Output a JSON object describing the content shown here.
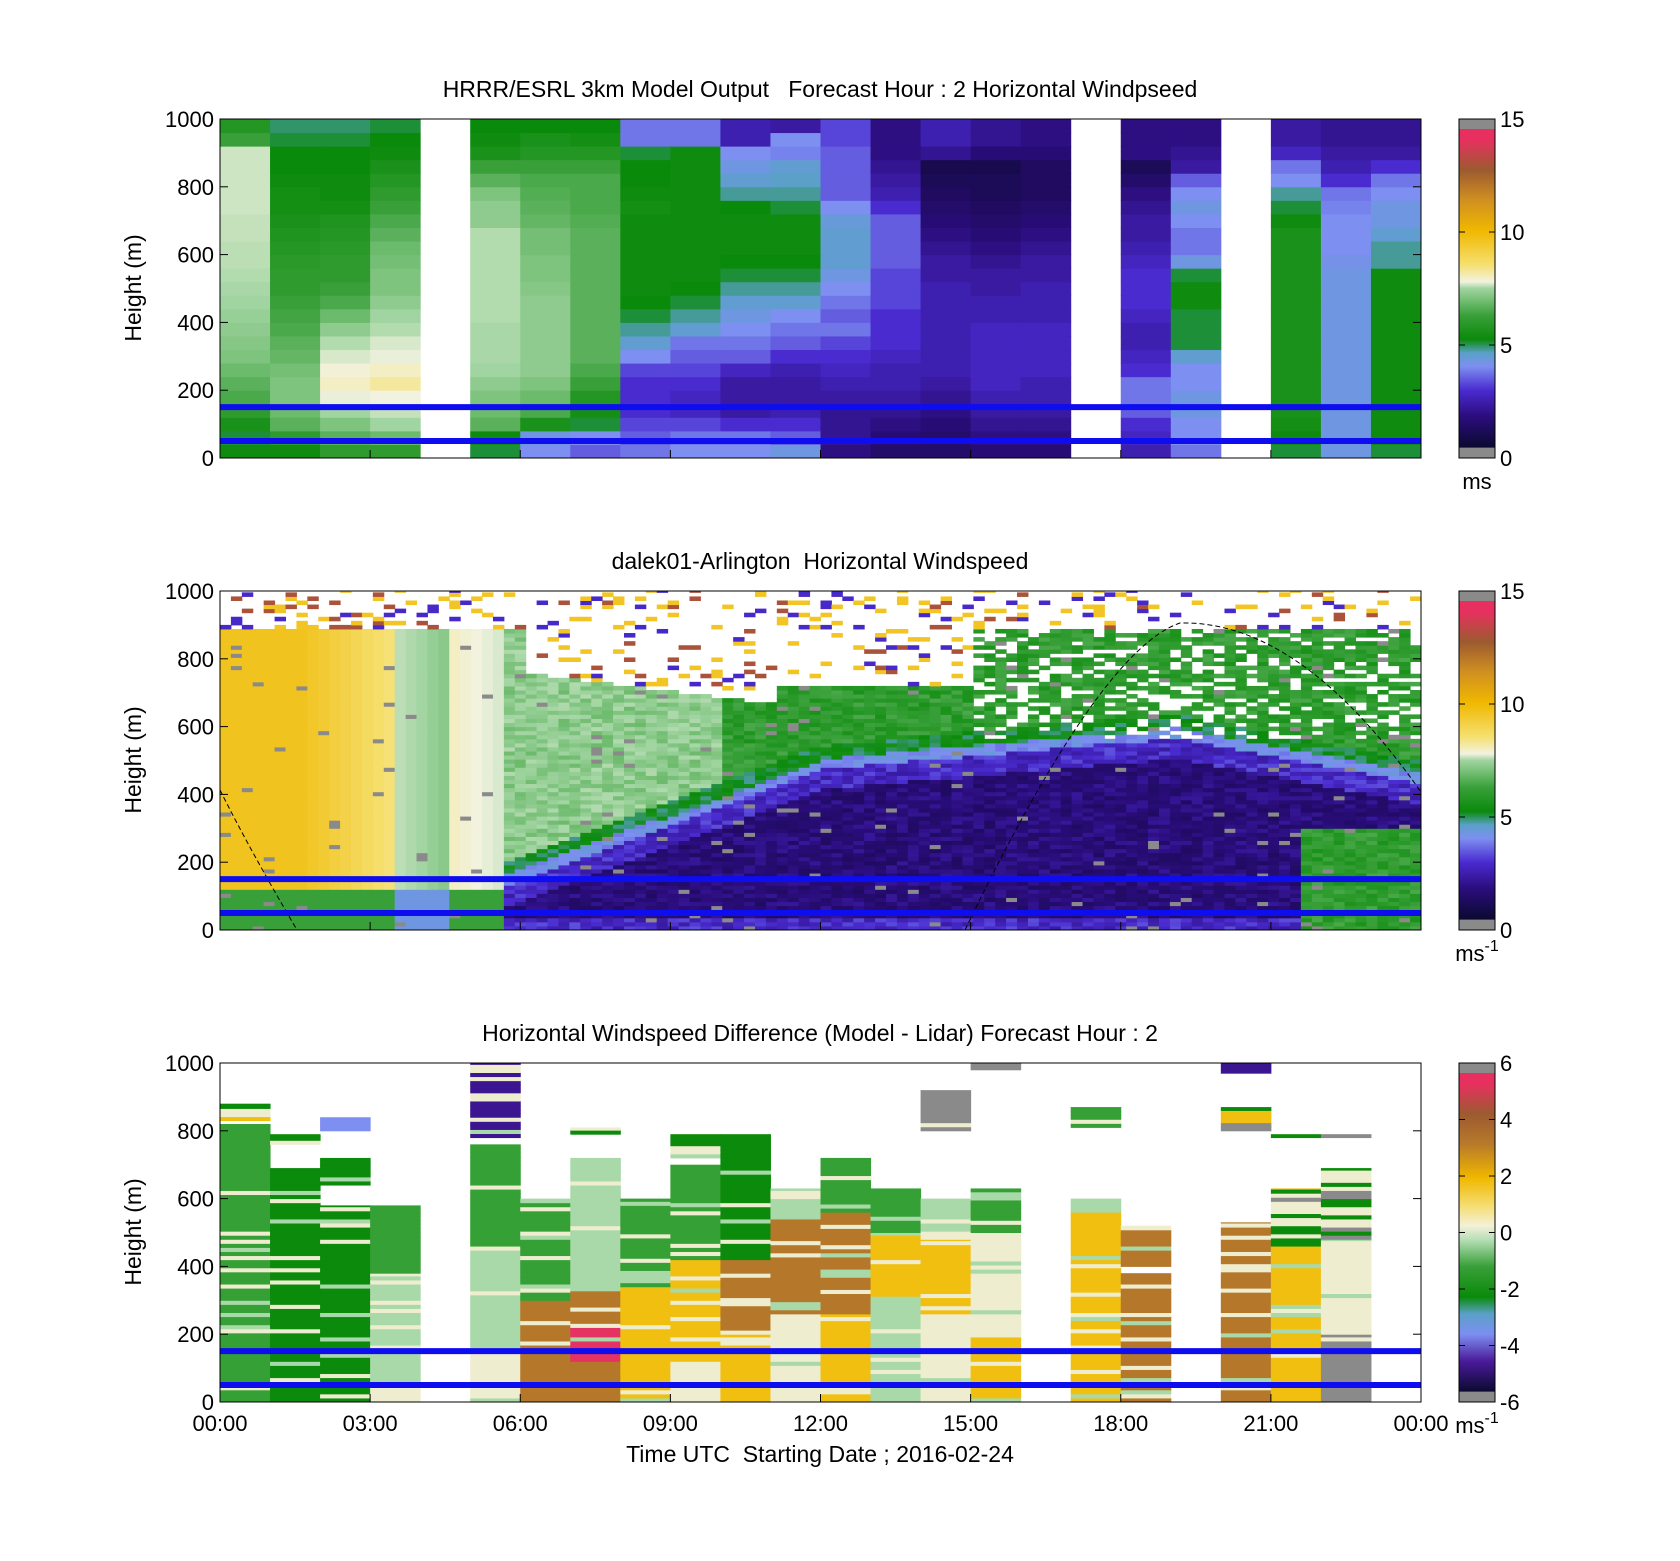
{
  "chart_data": [
    {
      "type": "heatmap",
      "title": "HRRR/ESRL 3km Model Output   Forecast Hour : 2 Horizontal Windpseed",
      "ylabel": "Height (m)",
      "xlabel": "",
      "ylim": [
        0,
        1000
      ],
      "yticks": [
        "0",
        "200",
        "400",
        "600",
        "800",
        "1000"
      ],
      "colorbar": {
        "min": 0,
        "max": 15,
        "ticks": [
          "0",
          "5",
          "10",
          "15"
        ],
        "unit": "ms",
        "unit_sup": "",
        "palette": "speed"
      },
      "x_hours_utc": [
        0,
        1,
        2,
        3,
        4,
        5,
        6,
        7,
        8,
        9,
        10,
        11,
        12,
        13,
        14,
        15,
        16,
        17,
        18,
        19,
        20,
        21,
        22,
        23
      ],
      "y_heights_m": [
        20,
        60,
        100,
        140,
        180,
        220,
        260,
        300,
        340,
        380,
        420,
        460,
        500,
        540,
        580,
        620,
        660,
        700,
        740,
        780,
        820,
        860,
        900,
        940,
        980
      ],
      "horizontal_lines_m": [
        50,
        150
      ],
      "note_missing": "null values are not shown"
    },
    {
      "type": "heatmap",
      "title": "dalek01-Arlington  Horizontal Windspeed",
      "ylabel": "Height (m)",
      "xlabel": "",
      "ylim": [
        0,
        1000
      ],
      "yticks": [
        "0",
        "200",
        "400",
        "600",
        "800",
        "1000"
      ],
      "colorbar": {
        "min": 0,
        "max": 15,
        "ticks": [
          "0",
          "5",
          "10",
          "15"
        ],
        "unit": "ms",
        "unit_sup": "-1",
        "palette": "speed"
      },
      "horizontal_lines_m": [
        50,
        150
      ]
    },
    {
      "type": "heatmap",
      "title": "Horizontal Windspeed Difference (Model - Lidar) Forecast Hour : 2",
      "ylabel": "Height (m)",
      "xlabel": "Time UTC  Starting Date ; 2016-02-24",
      "ylim": [
        0,
        1000
      ],
      "yticks": [
        "0",
        "200",
        "400",
        "600",
        "800",
        "1000"
      ],
      "xticks": [
        "00:00",
        "03:00",
        "06:00",
        "09:00",
        "12:00",
        "15:00",
        "18:00",
        "21:00",
        "00:00"
      ],
      "colorbar": {
        "min": -6,
        "max": 6,
        "ticks": [
          "-6",
          "-4",
          "-2",
          "0",
          "2",
          "4",
          "6"
        ],
        "unit": "ms",
        "unit_sup": "-1",
        "palette": "diff"
      },
      "horizontal_lines_m": [
        50,
        150
      ]
    }
  ],
  "model_columns": [
    [
      4.4,
      4.2,
      4.6,
      5.0,
      5.4,
      5.6,
      5.8,
      6.0,
      6.1,
      6.2,
      6.3,
      6.4,
      6.5,
      6.6,
      6.7,
      6.7,
      6.8,
      6.8,
      6.9,
      6.9,
      6.9,
      6.9,
      6.9,
      5.2,
      4.8
    ],
    [
      4.4,
      5.0,
      5.6,
      5.8,
      6.0,
      6.0,
      5.9,
      5.7,
      5.6,
      5.4,
      5.3,
      5.2,
      5.0,
      5.0,
      4.9,
      4.8,
      4.7,
      4.6,
      4.5,
      4.5,
      4.4,
      4.3,
      4.3,
      4.2,
      4.1
    ],
    [
      5.0,
      5.6,
      6.0,
      6.4,
      7.2,
      7.6,
      7.4,
      7.0,
      6.6,
      6.2,
      5.8,
      5.4,
      5.2,
      5.0,
      5.0,
      4.9,
      4.8,
      4.7,
      4.5,
      4.4,
      4.4,
      4.3,
      4.3,
      4.2,
      4.1
    ],
    [
      5.0,
      5.8,
      6.4,
      6.8,
      7.3,
      8.0,
      7.6,
      7.2,
      7.0,
      6.6,
      6.4,
      6.2,
      6.0,
      6.0,
      5.9,
      5.8,
      5.6,
      5.4,
      5.2,
      5.0,
      4.8,
      4.6,
      4.4,
      4.3,
      4.2
    ],
    [
      null,
      null,
      null,
      null,
      null,
      null,
      null,
      null,
      null,
      null,
      null,
      null,
      null,
      null,
      null,
      null,
      null,
      null,
      null,
      null,
      null,
      null,
      null,
      null,
      null
    ],
    [
      4.2,
      4.4,
      5.6,
      5.8,
      6.0,
      6.2,
      6.4,
      6.5,
      6.5,
      6.5,
      6.6,
      6.6,
      6.6,
      6.6,
      6.6,
      6.6,
      6.6,
      6.2,
      6.2,
      6.0,
      5.6,
      5.2,
      4.6,
      4.4,
      4.3
    ],
    [
      3.4,
      3.6,
      4.6,
      5.4,
      5.8,
      6.0,
      6.2,
      6.2,
      6.2,
      6.2,
      6.2,
      6.2,
      6.1,
      6.0,
      6.0,
      5.9,
      5.9,
      5.7,
      5.6,
      5.5,
      5.4,
      5.2,
      4.8,
      4.6,
      4.3
    ],
    [
      3.0,
      3.4,
      4.2,
      4.5,
      4.8,
      5.2,
      5.4,
      5.6,
      5.6,
      5.6,
      5.6,
      5.6,
      5.6,
      5.6,
      5.6,
      5.6,
      5.6,
      5.5,
      5.4,
      5.4,
      5.4,
      5.2,
      4.8,
      4.5,
      4.3
    ],
    [
      3.2,
      3.0,
      2.8,
      2.6,
      2.6,
      2.6,
      2.8,
      3.4,
      3.8,
      4.0,
      4.2,
      4.3,
      4.4,
      4.4,
      4.4,
      4.4,
      4.4,
      4.4,
      4.5,
      4.4,
      4.3,
      4.3,
      4.2,
      3.2,
      3.2
    ],
    [
      3.4,
      3.2,
      2.8,
      2.4,
      2.4,
      2.6,
      2.8,
      3.0,
      3.2,
      3.8,
      4.0,
      4.2,
      4.3,
      4.4,
      4.4,
      4.4,
      4.4,
      4.4,
      4.4,
      4.4,
      4.4,
      4.4,
      4.4,
      3.2,
      3.2
    ],
    [
      3.4,
      3.2,
      2.6,
      2.0,
      2.0,
      2.0,
      2.4,
      3.0,
      3.2,
      3.4,
      3.6,
      3.8,
      4.0,
      4.2,
      4.3,
      4.4,
      4.4,
      4.4,
      4.3,
      4.0,
      3.8,
      3.6,
      3.4,
      2.2,
      2.2
    ],
    [
      3.6,
      3.0,
      2.6,
      2.2,
      2.0,
      2.0,
      2.2,
      2.6,
      3.0,
      3.2,
      3.4,
      3.8,
      4.0,
      4.2,
      4.3,
      4.4,
      4.4,
      4.4,
      4.2,
      4.0,
      3.9,
      3.8,
      3.3,
      3.4,
      2.0
    ],
    [
      1.6,
      1.8,
      1.8,
      1.8,
      2.0,
      2.2,
      2.4,
      2.6,
      2.8,
      3.2,
      3.0,
      3.2,
      3.4,
      3.6,
      3.8,
      3.8,
      3.8,
      3.7,
      3.4,
      3.0,
      3.0,
      3.0,
      3.0,
      2.8,
      2.8
    ],
    [
      1.2,
      1.4,
      1.6,
      1.8,
      2.0,
      2.2,
      2.2,
      2.4,
      2.6,
      2.6,
      2.6,
      2.8,
      2.8,
      2.8,
      3.0,
      3.0,
      3.0,
      3.0,
      2.6,
      2.2,
      2.0,
      1.8,
      1.6,
      1.6,
      1.6
    ],
    [
      1.2,
      1.2,
      1.4,
      1.6,
      1.8,
      2.0,
      2.2,
      2.2,
      2.2,
      2.2,
      2.2,
      2.2,
      2.2,
      2.0,
      2.0,
      1.8,
      1.6,
      1.4,
      1.2,
      1.0,
      0.8,
      0.6,
      1.8,
      2.2,
      2.2
    ],
    [
      1.4,
      1.6,
      1.8,
      2.0,
      2.2,
      2.4,
      2.4,
      2.4,
      2.4,
      2.4,
      2.2,
      2.2,
      2.0,
      2.0,
      1.8,
      1.6,
      1.4,
      1.2,
      1.0,
      0.8,
      0.8,
      0.6,
      1.4,
      1.8,
      1.8
    ],
    [
      1.4,
      1.6,
      1.8,
      2.0,
      2.2,
      2.2,
      2.4,
      2.4,
      2.4,
      2.4,
      2.2,
      2.2,
      2.2,
      2.0,
      2.0,
      1.8,
      1.6,
      1.4,
      1.2,
      1.0,
      1.0,
      1.0,
      1.4,
      1.6,
      1.6
    ],
    [
      null,
      null,
      null,
      null,
      null,
      null,
      null,
      null,
      null,
      null,
      null,
      null,
      null,
      null,
      null,
      null,
      null,
      null,
      null,
      null,
      null,
      null,
      null,
      null,
      null
    ],
    [
      2.2,
      2.4,
      2.6,
      3.0,
      3.2,
      3.2,
      2.6,
      2.4,
      2.2,
      2.2,
      2.4,
      2.6,
      2.6,
      2.6,
      2.4,
      2.2,
      2.0,
      2.0,
      1.8,
      1.6,
      1.2,
      0.8,
      1.6,
      1.6,
      1.6
    ],
    [
      3.2,
      3.4,
      3.4,
      3.6,
      3.6,
      3.4,
      3.4,
      3.8,
      4.2,
      4.2,
      4.2,
      4.4,
      4.4,
      4.2,
      3.6,
      3.2,
      3.2,
      3.4,
      3.6,
      3.4,
      3.0,
      2.0,
      1.8,
      1.6,
      1.6
    ],
    [
      null,
      null,
      null,
      null,
      null,
      null,
      null,
      null,
      null,
      null,
      null,
      null,
      null,
      null,
      null,
      null,
      null,
      null,
      null,
      null,
      null,
      null,
      null,
      null,
      null
    ],
    [
      4.2,
      4.4,
      4.5,
      4.6,
      4.6,
      4.6,
      4.6,
      4.6,
      4.6,
      4.6,
      4.6,
      4.6,
      4.6,
      4.6,
      4.6,
      4.6,
      4.6,
      4.4,
      4.2,
      4.0,
      3.4,
      3.2,
      2.4,
      2.0,
      2.0
    ],
    [
      3.6,
      3.6,
      3.6,
      3.6,
      3.6,
      3.6,
      3.6,
      3.6,
      3.6,
      3.6,
      3.6,
      3.6,
      3.6,
      3.6,
      3.5,
      3.4,
      3.4,
      3.4,
      3.3,
      3.2,
      2.6,
      2.2,
      2.0,
      1.8,
      1.8
    ],
    [
      4.2,
      4.4,
      4.4,
      4.4,
      4.4,
      4.4,
      4.4,
      4.4,
      4.4,
      4.4,
      4.4,
      4.4,
      4.4,
      4.4,
      4.0,
      4.0,
      3.8,
      3.6,
      3.6,
      3.4,
      3.2,
      2.6,
      2.0,
      1.8,
      1.8
    ]
  ],
  "diff_columns": [
    {
      "top": 880,
      "ranges": [
        [
          0,
          820,
          "mg"
        ],
        [
          830,
          880,
          "tri"
        ]
      ]
    },
    {
      "top": 790,
      "ranges": [
        [
          0,
          690,
          "dg"
        ],
        [
          760,
          790,
          "dg"
        ]
      ]
    },
    {
      "top": 840,
      "ranges": [
        [
          0,
          580,
          "dg"
        ],
        [
          640,
          720,
          "dg"
        ],
        [
          800,
          840,
          "blue"
        ]
      ]
    },
    {
      "top": 580,
      "ranges": [
        [
          0,
          60,
          "cream"
        ],
        [
          60,
          380,
          "lg"
        ],
        [
          380,
          580,
          "mg"
        ]
      ]
    },
    {
      "top": 0,
      "ranges": []
    },
    {
      "top": 1000,
      "ranges": [
        [
          0,
          160,
          "cream"
        ],
        [
          160,
          460,
          "lg"
        ],
        [
          460,
          760,
          "mg"
        ],
        [
          780,
          1000,
          "purple"
        ]
      ]
    },
    {
      "top": 600,
      "ranges": [
        [
          0,
          300,
          "brown"
        ],
        [
          300,
          600,
          "mg"
        ]
      ]
    },
    {
      "top": 810,
      "ranges": [
        [
          0,
          120,
          "brown"
        ],
        [
          120,
          220,
          "pink"
        ],
        [
          220,
          340,
          "brown"
        ],
        [
          340,
          720,
          "lg"
        ],
        [
          790,
          810,
          "dg"
        ]
      ]
    },
    {
      "top": 600,
      "ranges": [
        [
          0,
          340,
          "gold"
        ],
        [
          340,
          600,
          "mg"
        ]
      ]
    },
    {
      "top": 790,
      "ranges": [
        [
          0,
          120,
          "cream"
        ],
        [
          120,
          420,
          "gold"
        ],
        [
          420,
          700,
          "mg"
        ],
        [
          720,
          790,
          "dg"
        ]
      ]
    },
    {
      "top": 790,
      "ranges": [
        [
          0,
          200,
          "gold"
        ],
        [
          200,
          420,
          "brown"
        ],
        [
          420,
          790,
          "dg"
        ]
      ]
    },
    {
      "top": 630,
      "ranges": [
        [
          0,
          260,
          "cream"
        ],
        [
          260,
          540,
          "brown"
        ],
        [
          540,
          630,
          "lg"
        ]
      ]
    },
    {
      "top": 720,
      "ranges": [
        [
          0,
          260,
          "gold"
        ],
        [
          260,
          560,
          "brown"
        ],
        [
          560,
          720,
          "mg"
        ]
      ]
    },
    {
      "top": 630,
      "ranges": [
        [
          0,
          300,
          "lg"
        ],
        [
          300,
          500,
          "gold"
        ],
        [
          500,
          630,
          "mg"
        ]
      ]
    },
    {
      "top": 600,
      "ranges": [
        [
          0,
          260,
          "cream"
        ],
        [
          260,
          480,
          "gold"
        ],
        [
          480,
          600,
          "lg"
        ],
        [
          800,
          920,
          "grey"
        ]
      ]
    },
    {
      "top": 630,
      "ranges": [
        [
          0,
          200,
          "gold"
        ],
        [
          200,
          500,
          "cream"
        ],
        [
          500,
          630,
          "mg"
        ],
        [
          980,
          1000,
          "grey"
        ]
      ]
    },
    {
      "top": 0,
      "ranges": []
    },
    {
      "top": 600,
      "ranges": [
        [
          0,
          560,
          "gold"
        ],
        [
          560,
          600,
          "lg"
        ],
        [
          810,
          870,
          "mg"
        ]
      ]
    },
    {
      "top": 520,
      "ranges": [
        [
          0,
          380,
          "brown"
        ],
        [
          400,
          520,
          "brown"
        ]
      ]
    },
    {
      "top": 0,
      "ranges": []
    },
    {
      "top": 1000,
      "ranges": [
        [
          0,
          530,
          "brown"
        ],
        [
          800,
          870,
          "tri"
        ],
        [
          970,
          1000,
          "purple"
        ]
      ]
    },
    {
      "top": 790,
      "ranges": [
        [
          0,
          460,
          "gold"
        ],
        [
          460,
          630,
          "tri"
        ],
        [
          780,
          790,
          "dg"
        ]
      ]
    },
    {
      "top": 690,
      "ranges": [
        [
          0,
          200,
          "grey"
        ],
        [
          200,
          480,
          "cream"
        ],
        [
          480,
          690,
          "tri"
        ],
        [
          780,
          790,
          "grey"
        ]
      ]
    },
    {
      "top": 0,
      "ranges": []
    }
  ]
}
